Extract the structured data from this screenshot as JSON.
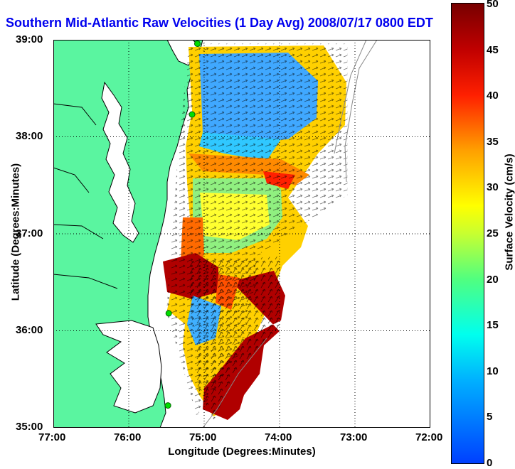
{
  "title": "Southern Mid-Atlantic Raw Velocities (1 Day Avg) 2008/07/17 0800 EDT",
  "xlabel": "Longitude (Degrees:Minutes)",
  "ylabel": "Latitude (Degrees:Minutes)",
  "colorbar": {
    "label": "Surface Velocity (cm/s)",
    "ticks": [
      "0",
      "5",
      "10",
      "15",
      "20",
      "25",
      "30",
      "35",
      "40",
      "45",
      "50"
    ],
    "range": [
      0,
      50
    ]
  },
  "x_ticks": [
    "77:00",
    "76:00",
    "75:00",
    "74:00",
    "73:00",
    "72:00"
  ],
  "y_ticks": [
    "39:00",
    "38:00",
    "37:00",
    "36:00",
    "35:00"
  ],
  "map": {
    "lon_range": [
      -77,
      -72
    ],
    "lat_range": [
      35,
      39
    ],
    "grid": true,
    "land_color": "#5af5a0",
    "coastline_color": "#000000",
    "site_marker_color": "#00dd00",
    "site_markers": [
      [
        -75.09,
        38.96
      ],
      [
        -75.16,
        38.23
      ],
      [
        -75.47,
        36.18
      ],
      [
        -75.48,
        35.23
      ]
    ]
  }
}
